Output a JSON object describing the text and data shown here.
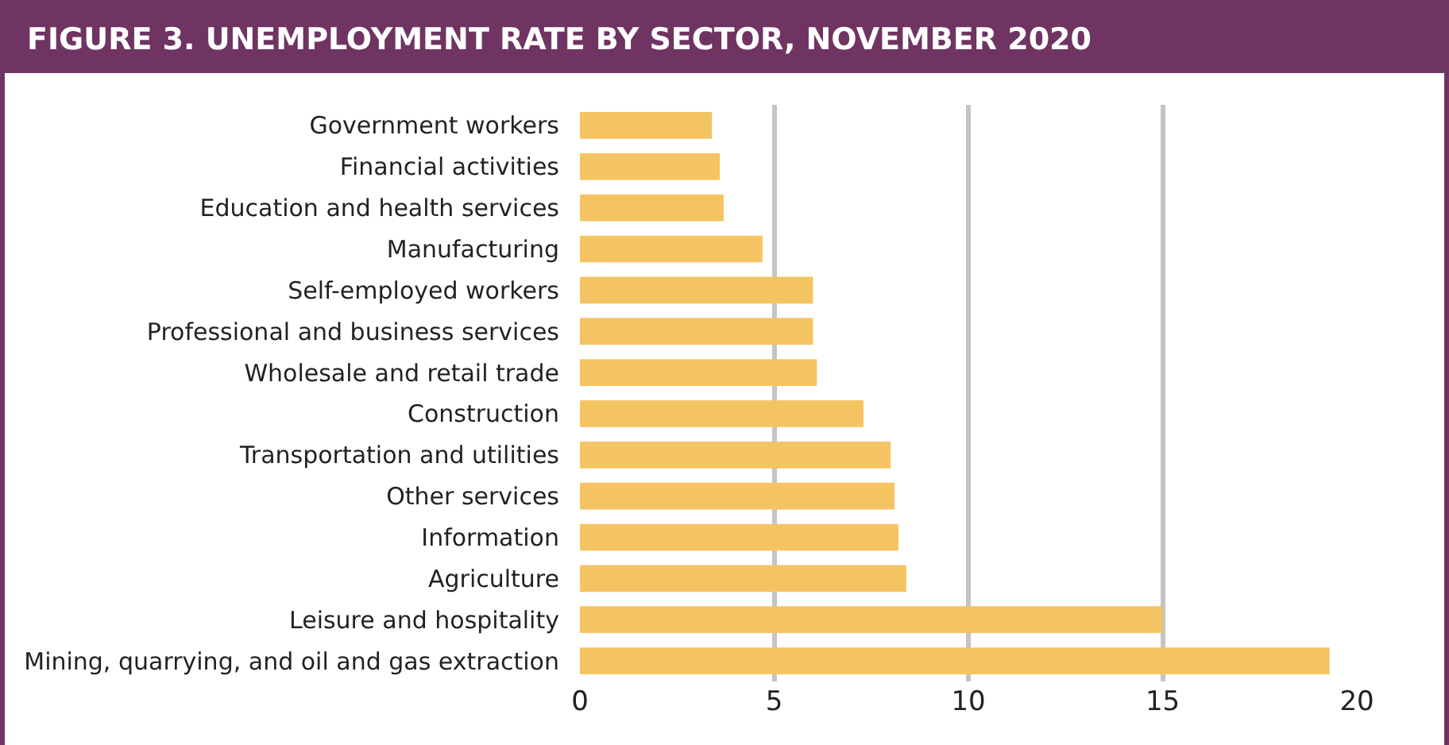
{
  "chart_data": {
    "type": "bar",
    "orientation": "horizontal",
    "title": "FIGURE 3. UNEMPLOYMENT RATE BY SECTOR, NOVEMBER 2020",
    "categories": [
      "Government workers",
      "Financial activities",
      "Education and health services",
      "Manufacturing",
      "Self-employed workers",
      "Professional and business services",
      "Wholesale and retail trade",
      "Construction",
      "Transportation and utilities",
      "Other services",
      "Information",
      "Agriculture",
      "Leisure and hospitality",
      "Mining, quarrying, and oil and gas extraction"
    ],
    "values": [
      3.4,
      3.6,
      3.7,
      4.7,
      6.0,
      6.0,
      6.1,
      7.3,
      8.0,
      8.1,
      8.2,
      8.4,
      15.0,
      19.3
    ],
    "color": "#f5c462",
    "xlim": [
      0,
      20
    ],
    "xticks": [
      0,
      5,
      10,
      15,
      20
    ],
    "grid": "x"
  }
}
